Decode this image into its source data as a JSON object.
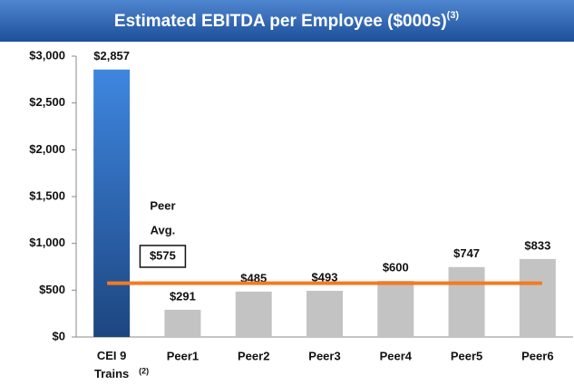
{
  "chart_data": {
    "type": "bar",
    "title": "Estimated EBITDA per Employee ($000s)",
    "title_note": "(3)",
    "categories": [
      "CEI 9 Trains",
      "Peer1",
      "Peer2",
      "Peer3",
      "Peer4",
      "Peer5",
      "Peer6"
    ],
    "category_notes": [
      "(2)",
      null,
      null,
      null,
      null,
      null,
      null
    ],
    "values": [
      2857,
      291,
      485,
      493,
      600,
      747,
      833
    ],
    "value_labels": [
      "$2,857",
      "$291",
      "$485",
      "$493",
      "$600",
      "$747",
      "$833"
    ],
    "colors": [
      "#2f6fc4",
      "#c3c3c3",
      "#c3c3c3",
      "#c3c3c3",
      "#c3c3c3",
      "#c3c3c3",
      "#c3c3c3"
    ],
    "ylim": [
      0,
      3000
    ],
    "yticks": [
      {
        "value": 0,
        "label": "$0"
      },
      {
        "value": 500,
        "label": "$500"
      },
      {
        "value": 1000,
        "label": "$1,000"
      },
      {
        "value": 1500,
        "label": "$1,500"
      },
      {
        "value": 2000,
        "label": "$2,000"
      },
      {
        "value": 2500,
        "label": "$2,500"
      },
      {
        "value": 3000,
        "label": "$3,000"
      }
    ],
    "average": {
      "value": 575,
      "label": "$575",
      "color": "#f47a20",
      "caption": [
        "Peer",
        "Avg."
      ]
    },
    "grid": false
  }
}
